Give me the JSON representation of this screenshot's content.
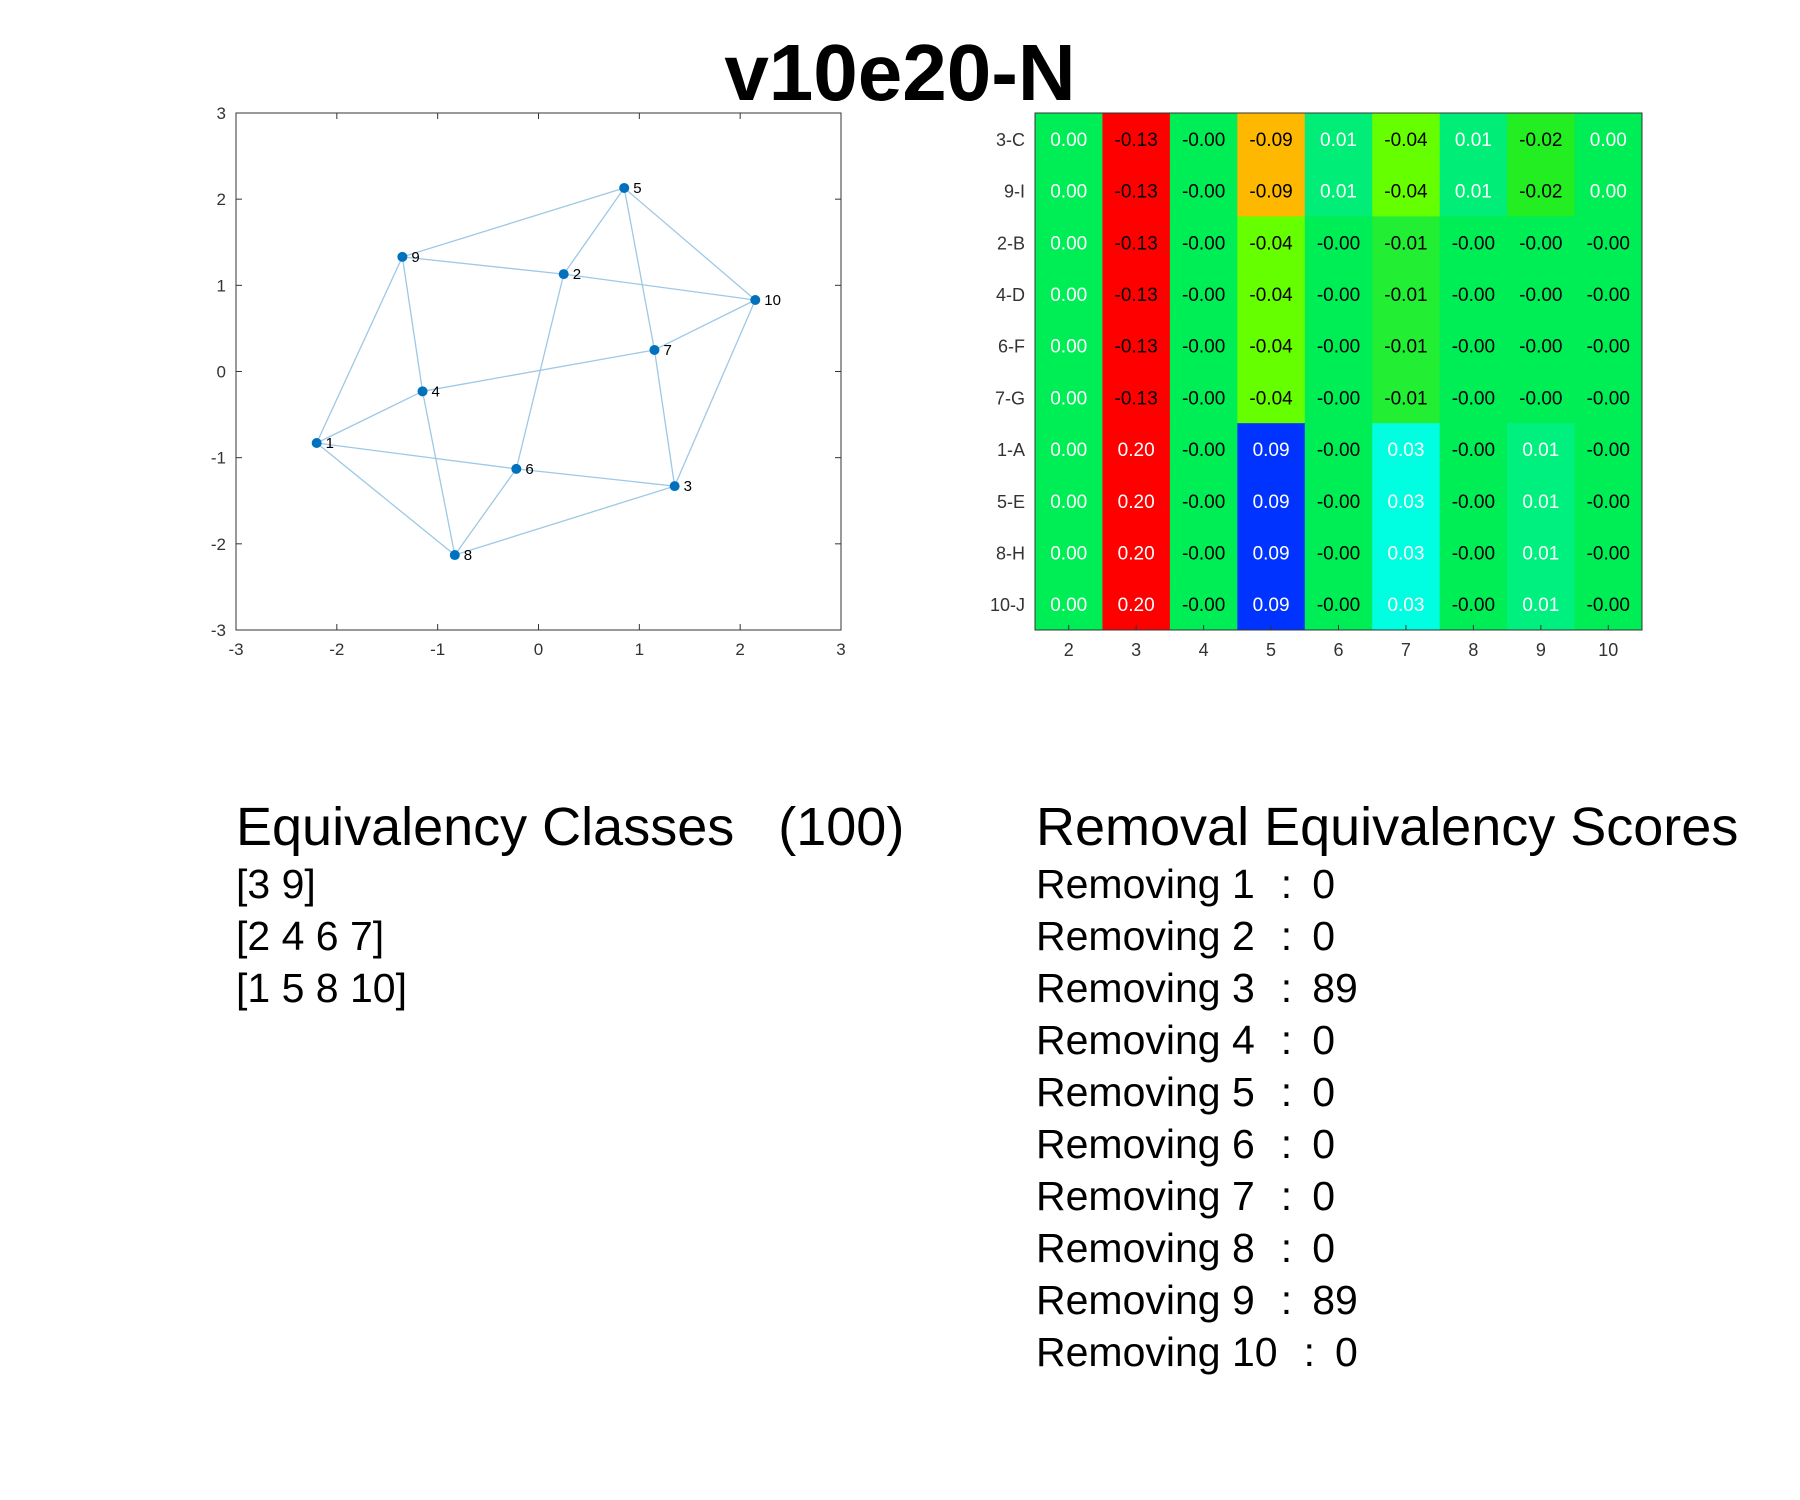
{
  "title": "v10e20-N",
  "graph": {
    "x_ticks": [
      "-3",
      "-2",
      "-1",
      "0",
      "1",
      "2",
      "3"
    ],
    "y_ticks": [
      "3",
      "2",
      "1",
      "0",
      "-1",
      "-2",
      "-3"
    ],
    "xlim": [
      -3,
      3
    ],
    "ylim": [
      -3,
      3
    ],
    "node_color": "#0072BD",
    "edge_color": "#9ec8e6",
    "nodes": [
      {
        "label": "1",
        "x": -2.2,
        "y": -0.83
      },
      {
        "label": "2",
        "x": 0.25,
        "y": 1.13
      },
      {
        "label": "3",
        "x": 1.35,
        "y": -1.33
      },
      {
        "label": "4",
        "x": -1.15,
        "y": -0.23
      },
      {
        "label": "5",
        "x": 0.85,
        "y": 2.13
      },
      {
        "label": "6",
        "x": -0.22,
        "y": -1.13
      },
      {
        "label": "7",
        "x": 1.15,
        "y": 0.25
      },
      {
        "label": "8",
        "x": -0.83,
        "y": -2.13
      },
      {
        "label": "9",
        "x": -1.35,
        "y": 1.33
      },
      {
        "label": "10",
        "x": 2.15,
        "y": 0.83
      }
    ],
    "edges": [
      [
        1,
        4
      ],
      [
        1,
        9
      ],
      [
        1,
        6
      ],
      [
        1,
        8
      ],
      [
        4,
        9
      ],
      [
        4,
        7
      ],
      [
        4,
        8
      ],
      [
        9,
        2
      ],
      [
        9,
        5
      ],
      [
        2,
        5
      ],
      [
        2,
        6
      ],
      [
        2,
        10
      ],
      [
        5,
        7
      ],
      [
        5,
        10
      ],
      [
        7,
        10
      ],
      [
        7,
        3
      ],
      [
        6,
        3
      ],
      [
        6,
        8
      ],
      [
        8,
        3
      ],
      [
        10,
        3
      ]
    ]
  },
  "chart_data": {
    "type": "heatmap",
    "columns": [
      "2",
      "3",
      "4",
      "5",
      "6",
      "7",
      "8",
      "9",
      "10"
    ],
    "rows": [
      "3-C",
      "9-I",
      "2-B",
      "4-D",
      "6-F",
      "7-G",
      "1-A",
      "5-E",
      "8-H",
      "10-J"
    ],
    "cells": [
      [
        "0.00",
        "-0.13",
        "-0.00",
        "-0.09",
        "0.01",
        "-0.04",
        "0.01",
        "-0.02",
        "0.00"
      ],
      [
        "0.00",
        "-0.13",
        "-0.00",
        "-0.09",
        "0.01",
        "-0.04",
        "0.01",
        "-0.02",
        "0.00"
      ],
      [
        "0.00",
        "-0.13",
        "-0.00",
        "-0.04",
        "-0.00",
        "-0.01",
        "-0.00",
        "-0.00",
        "-0.00"
      ],
      [
        "0.00",
        "-0.13",
        "-0.00",
        "-0.04",
        "-0.00",
        "-0.01",
        "-0.00",
        "-0.00",
        "-0.00"
      ],
      [
        "0.00",
        "-0.13",
        "-0.00",
        "-0.04",
        "-0.00",
        "-0.01",
        "-0.00",
        "-0.00",
        "-0.00"
      ],
      [
        "0.00",
        "-0.13",
        "-0.00",
        "-0.04",
        "-0.00",
        "-0.01",
        "-0.00",
        "-0.00",
        "-0.00"
      ],
      [
        "0.00",
        "0.20",
        "-0.00",
        "0.09",
        "-0.00",
        "0.03",
        "-0.00",
        "0.01",
        "-0.00"
      ],
      [
        "0.00",
        "0.20",
        "-0.00",
        "0.09",
        "-0.00",
        "0.03",
        "-0.00",
        "0.01",
        "-0.00"
      ],
      [
        "0.00",
        "0.20",
        "-0.00",
        "0.09",
        "-0.00",
        "0.03",
        "-0.00",
        "0.01",
        "-0.00"
      ],
      [
        "0.00",
        "0.20",
        "-0.00",
        "0.09",
        "-0.00",
        "0.03",
        "-0.00",
        "0.01",
        "-0.00"
      ]
    ],
    "color_scale": {
      "-0.13": "#ff0000",
      "-0.09": "#ffb800",
      "-0.04": "#66ff00",
      "-0.02": "#22ee22",
      "-0.01": "#22ee33",
      "-0.00": "#00ee55",
      "0.00": "#00ee55",
      "0.01": "#00f080",
      "0.03": "#00ffe0",
      "0.09": "#0033ff",
      "0.20": "#ff0000"
    },
    "dark_text_values": [
      "-0.13",
      "-0.00",
      "-0.09",
      "-0.04",
      "-0.02",
      "-0.01"
    ],
    "special_colors": {
      "0.01_in_col_9": "#00f080",
      "0.01_row_top": "#00ee77"
    }
  },
  "equivalency": {
    "heading": "Equivalency Classes",
    "count": "(100)",
    "classes": [
      "[3 9]",
      "[2 4 6 7]",
      "[1 5 8 10]"
    ]
  },
  "removal": {
    "heading": "Removal Equivalency Scores",
    "scores": [
      {
        "label": "Removing 1",
        "sep": ":",
        "value": "0"
      },
      {
        "label": "Removing 2",
        "sep": ":",
        "value": "0"
      },
      {
        "label": "Removing 3",
        "sep": ":",
        "value": "89"
      },
      {
        "label": "Removing 4",
        "sep": ":",
        "value": "0"
      },
      {
        "label": "Removing 5",
        "sep": ":",
        "value": "0"
      },
      {
        "label": "Removing 6",
        "sep": ":",
        "value": "0"
      },
      {
        "label": "Removing 7",
        "sep": ":",
        "value": "0"
      },
      {
        "label": "Removing 8",
        "sep": ":",
        "value": "0"
      },
      {
        "label": "Removing 9",
        "sep": ":",
        "value": "89"
      },
      {
        "label": "Removing 10",
        "sep": ":",
        "value": "0"
      }
    ]
  }
}
